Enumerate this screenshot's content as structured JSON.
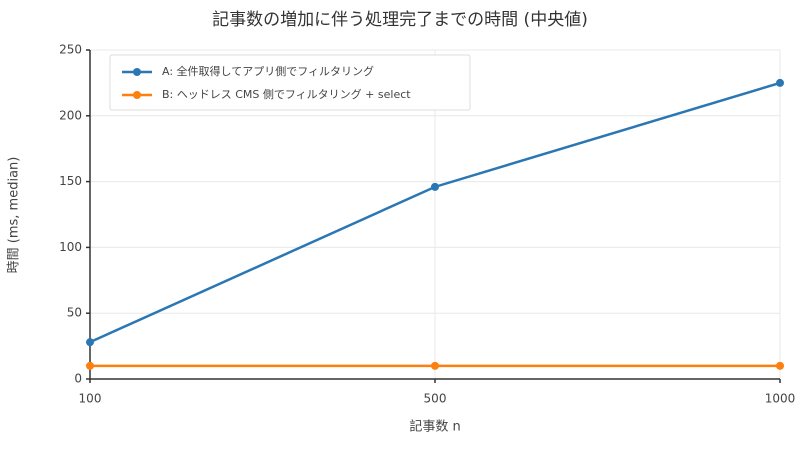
{
  "chart_data": {
    "type": "line",
    "title": "記事数の増加に伴う処理完了までの時間 (中央値)",
    "x_label": "記事数 n",
    "y_label": "時間 (ms, median)",
    "categories": [
      "100",
      "500",
      "1000"
    ],
    "series": [
      {
        "name": "A: 全件取得してアプリ側でフィルタリング",
        "color": "#2a77b4",
        "values": [
          28,
          146,
          225
        ]
      },
      {
        "name": "B: ヘッドレス CMS 側でフィルタリング + select",
        "color": "#fe7f0e",
        "values": [
          10,
          10,
          10
        ]
      }
    ],
    "ylim": [
      0,
      250
    ],
    "yticks": [
      0,
      50,
      100,
      150,
      200,
      250
    ],
    "grid": true,
    "legend": "upper left"
  }
}
